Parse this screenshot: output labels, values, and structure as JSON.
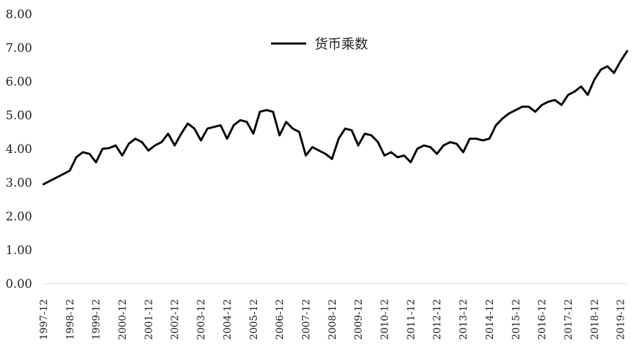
{
  "chart_data": {
    "type": "line",
    "title": "",
    "xlabel": "",
    "ylabel": "",
    "ylim": [
      0,
      8
    ],
    "y_ticks": [
      "0.00",
      "1.00",
      "2.00",
      "3.00",
      "4.00",
      "5.00",
      "6.00",
      "7.00",
      "8.00"
    ],
    "x_ticks": [
      "1997-12",
      "1998-12",
      "1999-12",
      "2000-12",
      "2001-12",
      "2002-12",
      "2003-12",
      "2004-12",
      "2005-12",
      "2006-12",
      "2007-12",
      "2008-12",
      "2009-12",
      "2010-12",
      "2011-12",
      "2012-12",
      "2013-12",
      "2014-12",
      "2015-12",
      "2016-12",
      "2017-12",
      "2018-12",
      "2019-12"
    ],
    "grid": false,
    "legend_position": "top-center",
    "series": [
      {
        "name": "货币乘数",
        "color": "#000000",
        "x": [
          "1997-12",
          "1998-06",
          "1998-12",
          "1999-03",
          "1999-06",
          "1999-09",
          "1999-12",
          "2000-03",
          "2000-06",
          "2000-09",
          "2000-12",
          "2001-03",
          "2001-06",
          "2001-09",
          "2001-12",
          "2002-03",
          "2002-06",
          "2002-09",
          "2002-12",
          "2003-03",
          "2003-06",
          "2003-09",
          "2003-12",
          "2004-03",
          "2004-06",
          "2004-09",
          "2004-12",
          "2005-03",
          "2005-06",
          "2005-09",
          "2005-12",
          "2006-03",
          "2006-06",
          "2006-09",
          "2006-12",
          "2007-03",
          "2007-06",
          "2007-09",
          "2007-12",
          "2008-03",
          "2008-06",
          "2008-09",
          "2008-12",
          "2009-03",
          "2009-06",
          "2009-09",
          "2009-12",
          "2010-03",
          "2010-06",
          "2010-09",
          "2010-12",
          "2011-03",
          "2011-06",
          "2011-09",
          "2011-12",
          "2012-03",
          "2012-06",
          "2012-09",
          "2012-12",
          "2013-03",
          "2013-06",
          "2013-09",
          "2013-12",
          "2014-03",
          "2014-06",
          "2014-09",
          "2014-12",
          "2015-03",
          "2015-06",
          "2015-09",
          "2015-12",
          "2016-03",
          "2016-06",
          "2016-09",
          "2016-12",
          "2017-03",
          "2017-06",
          "2017-09",
          "2017-12",
          "2018-03",
          "2018-06",
          "2018-09",
          "2018-12",
          "2019-03",
          "2019-06",
          "2019-09",
          "2019-12",
          "2020-03"
        ],
        "values": [
          2.95,
          3.15,
          3.35,
          3.75,
          3.9,
          3.85,
          3.6,
          4.0,
          4.02,
          4.1,
          3.8,
          4.15,
          4.3,
          4.2,
          3.95,
          4.1,
          4.2,
          4.45,
          4.1,
          4.45,
          4.75,
          4.6,
          4.25,
          4.6,
          4.65,
          4.7,
          4.3,
          4.7,
          4.85,
          4.8,
          4.45,
          5.1,
          5.15,
          5.1,
          4.4,
          4.8,
          4.6,
          4.5,
          3.8,
          4.05,
          3.95,
          3.85,
          3.7,
          4.3,
          4.6,
          4.55,
          4.1,
          4.45,
          4.4,
          4.2,
          3.8,
          3.9,
          3.75,
          3.8,
          3.6,
          4.0,
          4.1,
          4.05,
          3.85,
          4.1,
          4.2,
          4.15,
          3.9,
          4.3,
          4.3,
          4.25,
          4.3,
          4.7,
          4.9,
          5.05,
          5.15,
          5.25,
          5.25,
          5.1,
          5.3,
          5.4,
          5.45,
          5.3,
          5.6,
          5.7,
          5.85,
          5.6,
          6.05,
          6.35,
          6.45,
          6.25,
          6.6,
          6.9
        ]
      }
    ]
  }
}
